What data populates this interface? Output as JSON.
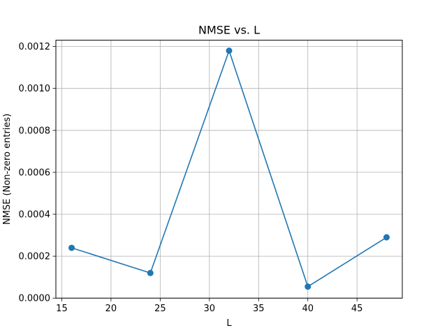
{
  "chart_data": {
    "type": "line",
    "title": "NMSE vs. L",
    "xlabel": "L",
    "ylabel": "NMSE (Non-zero entries)",
    "x": [
      16,
      24,
      32,
      40,
      48
    ],
    "series": [
      {
        "values": [
          0.00024,
          0.00012,
          0.00118,
          5.5e-05,
          0.00029
        ]
      }
    ],
    "xlim": [
      14.4,
      49.6
    ],
    "ylim": [
      0,
      0.00123
    ],
    "xticks": [
      15,
      20,
      25,
      30,
      35,
      40,
      45
    ],
    "xtick_labels": [
      "15",
      "20",
      "25",
      "30",
      "35",
      "40",
      "45"
    ],
    "yticks": [
      0,
      0.0002,
      0.0004,
      0.0006,
      0.0008,
      0.001,
      0.0012
    ],
    "ytick_labels": [
      "0.0000",
      "0.0002",
      "0.0004",
      "0.0006",
      "0.0008",
      "0.0010",
      "0.0012"
    ],
    "grid": true,
    "markers": "circle",
    "colors": {
      "line": "#1f77b4",
      "grid": "#b0b0b0",
      "axis": "#000000"
    }
  }
}
